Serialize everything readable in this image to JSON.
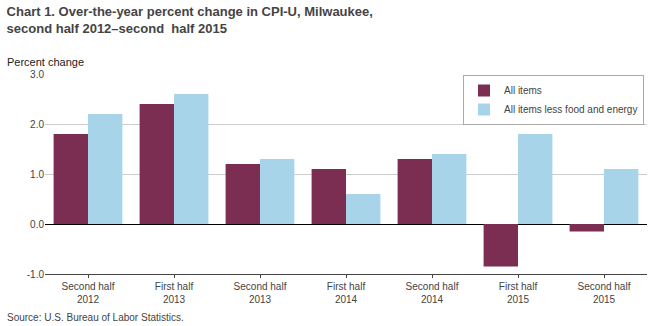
{
  "chart_data": {
    "type": "bar",
    "title": "Chart 1. Over-the-year percent change in CPI-U, Milwaukee, second half 2012–second  half 2015",
    "ylabel": "Percent change",
    "annotations": [
      "Source: U.S. Bureau of Labor Statistics."
    ],
    "categories": [
      "Second half 2012",
      "First half 2013",
      "Second half 2013",
      "First half 2014",
      "Second half 2014",
      "First half 2015",
      "Second half 2015"
    ],
    "series": [
      {
        "name": "All items",
        "color": "#7b2d52",
        "values": [
          1.8,
          2.4,
          1.2,
          1.1,
          1.3,
          -0.85,
          -0.15
        ]
      },
      {
        "name": "All items less food and energy",
        "color": "#a8d4ea",
        "values": [
          2.2,
          2.6,
          1.3,
          0.6,
          1.4,
          1.8,
          1.1
        ]
      }
    ],
    "ylim": [
      -1.0,
      3.0
    ],
    "yticks": [
      {
        "value": -1.0,
        "label": "-1.0"
      },
      {
        "value": 0.0,
        "label": "0.0"
      },
      {
        "value": 1.0,
        "label": "1.0"
      },
      {
        "value": 2.0,
        "label": "2.0"
      },
      {
        "value": 3.0,
        "label": "3.0"
      }
    ],
    "grid": true,
    "legend": "upper right"
  }
}
